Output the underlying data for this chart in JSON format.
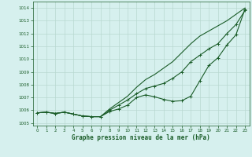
{
  "title": "",
  "xlabel": "Graphe pression niveau de la mer (hPa)",
  "ylabel": "",
  "bg_color": "#d6f0ee",
  "grid_color": "#b8d8d0",
  "line_color": "#1a5c28",
  "marker_color": "#1a5c28",
  "ylim": [
    1004.8,
    1014.5
  ],
  "xlim": [
    -0.5,
    23.5
  ],
  "yticks": [
    1005,
    1006,
    1007,
    1008,
    1009,
    1010,
    1011,
    1012,
    1013,
    1014
  ],
  "xticks": [
    0,
    1,
    2,
    3,
    4,
    5,
    6,
    7,
    8,
    9,
    10,
    11,
    12,
    13,
    14,
    15,
    16,
    17,
    18,
    19,
    20,
    21,
    22,
    23
  ],
  "line_smooth": [
    1005.8,
    1005.85,
    1005.75,
    1005.85,
    1005.7,
    1005.55,
    1005.5,
    1005.5,
    1006.1,
    1006.6,
    1007.1,
    1007.8,
    1008.4,
    1008.8,
    1009.3,
    1009.8,
    1010.5,
    1011.2,
    1011.8,
    1012.2,
    1012.6,
    1013.0,
    1013.5,
    1014.0
  ],
  "line_mid": [
    1005.8,
    1005.85,
    1005.75,
    1005.85,
    1005.7,
    1005.55,
    1005.5,
    1005.5,
    1006.0,
    1006.4,
    1006.8,
    1007.3,
    1007.7,
    1007.9,
    1008.1,
    1008.5,
    1009.0,
    1009.8,
    1010.3,
    1010.8,
    1011.2,
    1012.0,
    1012.7,
    1013.8
  ],
  "line_bumpy": [
    1005.8,
    1005.85,
    1005.75,
    1005.85,
    1005.7,
    1005.55,
    1005.5,
    1005.5,
    1005.9,
    1006.1,
    1006.4,
    1007.0,
    1007.2,
    1007.05,
    1006.85,
    1006.7,
    1006.75,
    1007.1,
    1008.3,
    1009.5,
    1010.1,
    1011.1,
    1011.9,
    1013.9
  ]
}
